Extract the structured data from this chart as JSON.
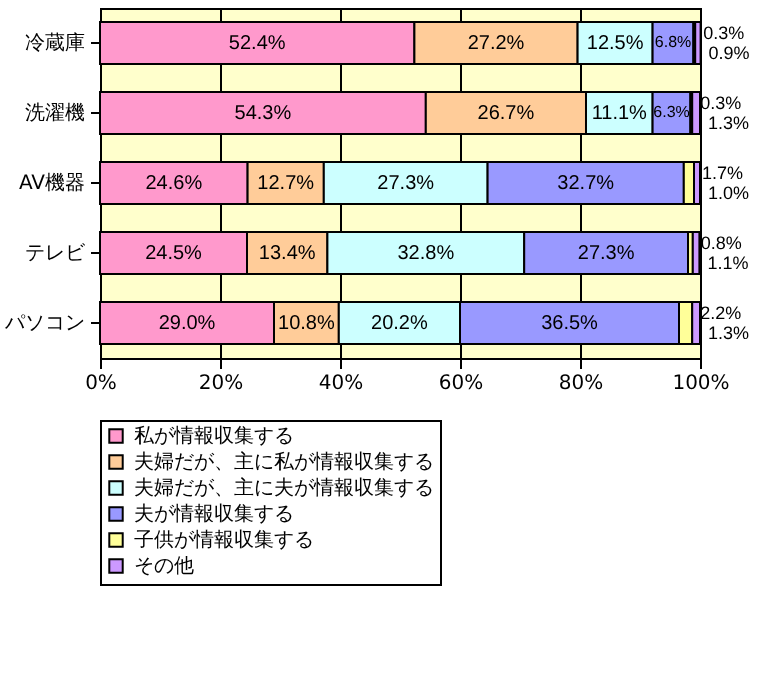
{
  "chart_data": {
    "type": "bar",
    "orientation": "horizontal",
    "stacked": true,
    "categories": [
      "冷蔵庫",
      "洗濯機",
      "AV機器",
      "テレビ",
      "パソコン"
    ],
    "series": [
      {
        "name": "私が情報収集する",
        "color": "#ff99cc",
        "values": [
          52.4,
          54.3,
          24.6,
          24.5,
          29.0
        ],
        "value_labels": [
          "52.4%",
          "54.3%",
          "24.6%",
          "24.5%",
          "29.0%"
        ]
      },
      {
        "name": "夫婦だが、主に私が情報収集する",
        "color": "#ffcc99",
        "values": [
          27.2,
          26.7,
          12.7,
          13.4,
          10.8
        ],
        "value_labels": [
          "27.2%",
          "26.7%",
          "12.7%",
          "13.4%",
          "10.8%"
        ]
      },
      {
        "name": "夫婦だが、主に夫が情報収集する",
        "color": "#ccffff",
        "values": [
          12.5,
          11.1,
          27.3,
          32.8,
          20.2
        ],
        "value_labels": [
          "12.5%",
          "11.1%",
          "27.3%",
          "32.8%",
          "20.2%"
        ]
      },
      {
        "name": "夫が情報収集する",
        "color": "#9999ff",
        "values": [
          6.8,
          6.3,
          32.7,
          27.3,
          36.5
        ],
        "value_labels": [
          "6.8%",
          "6.3%",
          "32.7%",
          "27.3%",
          "36.5%"
        ]
      },
      {
        "name": "子供が情報収集する",
        "color": "#ffff99",
        "values": [
          0.3,
          0.3,
          1.7,
          0.8,
          2.2
        ],
        "value_labels": [
          "0.3%",
          "0.3%",
          "1.7%",
          "0.8%",
          "2.2%"
        ]
      },
      {
        "name": "その他",
        "color": "#cc99ff",
        "values": [
          0.9,
          1.3,
          1.0,
          1.1,
          1.3
        ],
        "value_labels": [
          "0.9%",
          "1.3%",
          "1.0%",
          "1.1%",
          "1.3%"
        ]
      }
    ],
    "xlim": [
      0,
      100
    ],
    "xticks": [
      {
        "value": 0,
        "label": "0%"
      },
      {
        "value": 20,
        "label": "20%"
      },
      {
        "value": 40,
        "label": "40%"
      },
      {
        "value": 60,
        "label": "60%"
      },
      {
        "value": 80,
        "label": "80%"
      },
      {
        "value": 100,
        "label": "100%"
      }
    ],
    "grid": "x",
    "legend": "bottom"
  }
}
